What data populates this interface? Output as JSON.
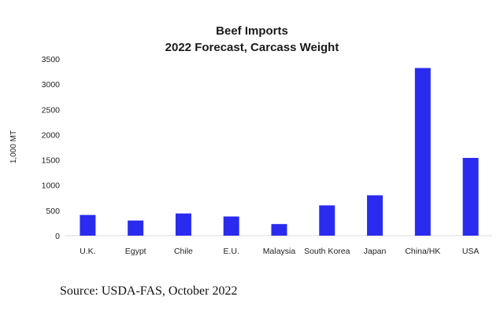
{
  "chart_data": {
    "type": "bar",
    "title": "Beef Imports",
    "subtitle": "2022 Forecast, Carcass Weight",
    "ylabel": "1,000 MT",
    "xlabel": "",
    "ylim": [
      0,
      3500
    ],
    "yticks": [
      0,
      500,
      1000,
      1500,
      2000,
      2500,
      3000,
      3500
    ],
    "categories": [
      "U.K.",
      "Egypt",
      "Chile",
      "E.U.",
      "Malaysia",
      "South Korea",
      "Japan",
      "China/HK",
      "USA"
    ],
    "values": [
      410,
      300,
      440,
      380,
      230,
      600,
      800,
      3320,
      1540
    ],
    "bar_color": "#2b2bef",
    "grid": false,
    "legend": "none"
  },
  "source": "Source:  USDA-FAS, October 2022"
}
